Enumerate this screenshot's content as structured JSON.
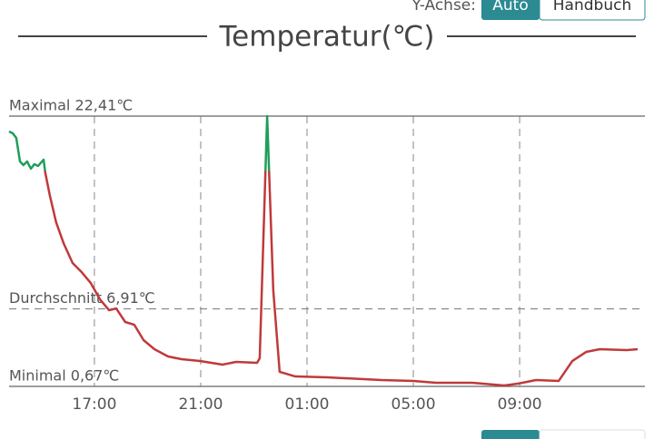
{
  "y_axis_toggle": {
    "label": "Y-Achse:",
    "options": [
      "Auto",
      "Handbuch"
    ],
    "selected": 0
  },
  "chart_data": {
    "type": "line",
    "title": "Temperatur(℃)",
    "x": [
      13.79,
      13.93,
      14.06,
      14.2,
      14.33,
      14.47,
      14.61,
      14.74,
      14.88,
      15.09,
      15.15,
      15.32,
      15.56,
      15.84,
      16.18,
      16.52,
      16.86,
      17.21,
      17.55,
      17.82,
      18.16,
      18.5,
      18.85,
      19.26,
      19.77,
      20.28,
      20.97,
      21.82,
      22.33,
      23.12,
      23.22,
      23.5,
      23.73,
      23.97,
      24.56,
      25.75,
      27.8,
      29.0,
      29.85,
      31.22,
      32.42,
      32.93,
      33.62,
      34.47,
      34.98,
      35.5,
      36.01,
      37.03,
      37.44
    ],
    "values": [
      21.17,
      21.02,
      20.66,
      18.76,
      18.47,
      18.76,
      18.18,
      18.54,
      18.4,
      18.9,
      17.88,
      16.06,
      13.87,
      12.19,
      10.59,
      9.86,
      8.99,
      7.67,
      6.8,
      6.94,
      5.85,
      5.63,
      4.39,
      3.66,
      3.08,
      2.86,
      2.71,
      2.42,
      2.64,
      2.57,
      2.93,
      22.41,
      8.4,
      1.84,
      1.47,
      1.4,
      1.18,
      1.11,
      0.96,
      0.96,
      0.74,
      0.89,
      1.18,
      1.11,
      2.71,
      3.44,
      3.66,
      3.59,
      3.66
    ],
    "color": "#c0393b",
    "above_color": "#1f9e5b",
    "threshold": 18,
    "xlim": [
      13.79,
      37.44
    ],
    "ylim": [
      0.67,
      22.41
    ],
    "xticks": [
      {
        "value": 17,
        "label": "17:00"
      },
      {
        "value": 21,
        "label": "21:00"
      },
      {
        "value": 25,
        "label": "01:00"
      },
      {
        "value": 29,
        "label": "05:00"
      },
      {
        "value": 33,
        "label": "09:00"
      }
    ],
    "grid": true,
    "reference_lines": [
      {
        "label": "Maximal 22,41℃",
        "value": 22.41,
        "style": "solid"
      },
      {
        "label": "Durchschnitt 6,91℃",
        "value": 6.91,
        "style": "dashed"
      },
      {
        "label": "Minimal 0,67℃",
        "value": 0.67,
        "style": "solid"
      }
    ]
  }
}
